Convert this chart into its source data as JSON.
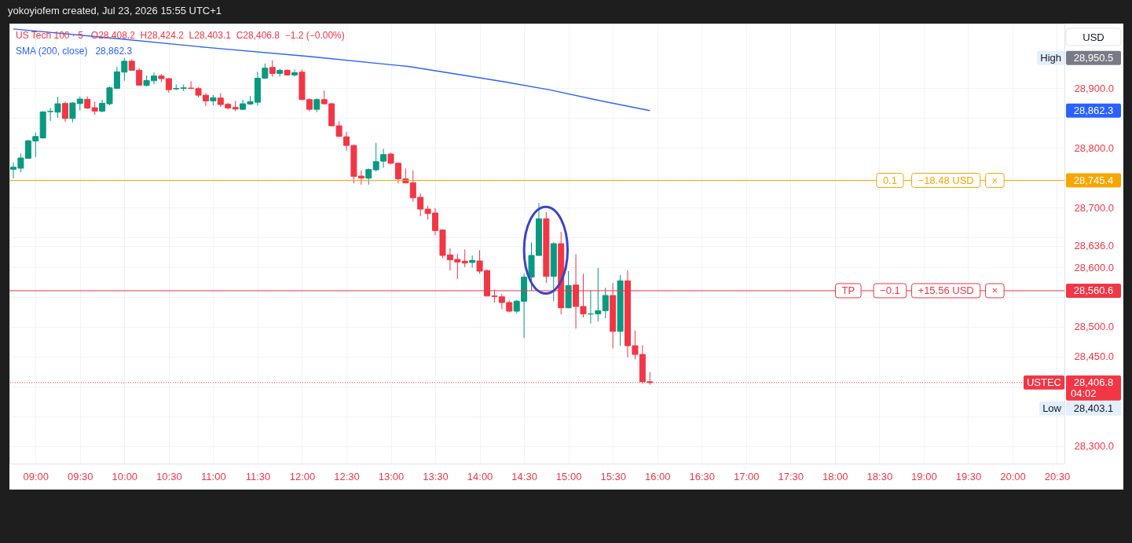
{
  "chart_data": {
    "type": "candlestick",
    "title": "US Tech 100 · 5",
    "ylabel": "USD",
    "x": [
      8.75,
      8.8333,
      8.9167,
      9,
      9.0833,
      9.1667,
      9.25,
      9.3333,
      9.4167,
      9.5,
      9.5833,
      9.6667,
      9.75,
      9.8333,
      9.9167,
      10,
      10.0833,
      10.1667,
      10.25,
      10.3333,
      10.4167,
      10.5,
      10.5833,
      10.6667,
      10.75,
      10.8333,
      10.9167,
      11,
      11.0833,
      11.1667,
      11.25,
      11.3333,
      11.4167,
      11.5,
      11.5833,
      11.6667,
      11.75,
      11.8333,
      11.9167,
      12,
      12.0833,
      12.1667,
      12.25,
      12.3333,
      12.4167,
      12.5,
      12.5833,
      12.6667,
      12.75,
      12.8333,
      12.9167,
      13,
      13.0833,
      13.1667,
      13.25,
      13.3333,
      13.4167,
      13.5,
      13.5833,
      13.6667,
      13.75,
      13.8333,
      13.9167,
      14,
      14.0833,
      14.1667,
      14.25,
      14.3333,
      14.4167,
      14.5,
      14.5833,
      14.6667,
      14.75,
      14.8333,
      14.9167,
      15,
      15.0833,
      15.1667,
      15.25,
      15.3333,
      15.4167,
      15.5,
      15.5833,
      15.6667,
      15.75,
      15.8333,
      15.9167
    ],
    "ohlc": [
      [
        28764.0,
        28775.4,
        28749.0,
        28767.5
      ],
      [
        28765.8,
        28790.8,
        28758.8,
        28782.9
      ],
      [
        28782.4,
        28812.7,
        28782.0,
        28811.8
      ],
      [
        28811.4,
        28825.4,
        28784.2,
        28818.8
      ],
      [
        28816.6,
        28861.4,
        28815.0,
        28860.1
      ],
      [
        28860.5,
        28866.7,
        28844.7,
        28861.0
      ],
      [
        28859.6,
        28885.5,
        28850.0,
        28873.7
      ],
      [
        28874.1,
        28877.2,
        28843.4,
        28849.1
      ],
      [
        28849.1,
        28876.3,
        28842.5,
        28875.0
      ],
      [
        28874.1,
        28886.0,
        28862.3,
        28881.6
      ],
      [
        28881.1,
        28886.0,
        28864.9,
        28866.6
      ],
      [
        28867.1,
        28877.6,
        28855.2,
        28861.4
      ],
      [
        28861.4,
        28880.7,
        28859.2,
        28874.5
      ],
      [
        28873.7,
        28902.6,
        28871.0,
        28900.4
      ],
      [
        28899.5,
        28935.5,
        28898.2,
        28927.2
      ],
      [
        28926.7,
        28950.5,
        28912.3,
        28945.0
      ],
      [
        28945.0,
        28948.0,
        28929.0,
        28929.8
      ],
      [
        28929.8,
        28933.3,
        28904.0,
        28904.8
      ],
      [
        28904.4,
        28921.0,
        28902.6,
        28912.7
      ],
      [
        28912.3,
        28925.9,
        28906.1,
        28920.2
      ],
      [
        28920.2,
        28923.7,
        28910.1,
        28915.8
      ],
      [
        28915.8,
        28917.0,
        28892.1,
        28897.3
      ],
      [
        28898.6,
        28906.1,
        28896.5,
        28899.5
      ],
      [
        28899.5,
        28906.1,
        28894.7,
        28900.4
      ],
      [
        28900.0,
        28911.4,
        28898.2,
        28899.5
      ],
      [
        28899.1,
        28901.7,
        28884.2,
        28888.1
      ],
      [
        28888.1,
        28891.6,
        28869.7,
        28878.5
      ],
      [
        28878.5,
        28888.6,
        28871.0,
        28883.8
      ],
      [
        28883.3,
        28891.6,
        28868.4,
        28872.4
      ],
      [
        28872.8,
        28875.4,
        28864.4,
        28866.6
      ],
      [
        28867.5,
        28878.5,
        28861.4,
        28864.9
      ],
      [
        28864.4,
        28880.7,
        28863.1,
        28873.7
      ],
      [
        28873.2,
        28886.8,
        28871.9,
        28877.2
      ],
      [
        28876.3,
        28927.2,
        28871.0,
        28916.6
      ],
      [
        28916.6,
        28941.2,
        28914.9,
        28933.3
      ],
      [
        28934.6,
        28946.5,
        28919.3,
        28924.5
      ],
      [
        28924.5,
        28932.4,
        28919.3,
        28929.8
      ],
      [
        28929.8,
        28931.1,
        28921.0,
        28921.9
      ],
      [
        28921.9,
        28931.1,
        28919.3,
        28925.9
      ],
      [
        28926.7,
        28931.1,
        28880.0,
        28880.7
      ],
      [
        28880.7,
        28882.9,
        28861.0,
        28864.4
      ],
      [
        28864.4,
        28882.9,
        28859.6,
        28880.7
      ],
      [
        28880.7,
        28896.0,
        28873.0,
        28873.7
      ],
      [
        28873.7,
        28875.4,
        28836.0,
        28836.8
      ],
      [
        28836.8,
        28844.3,
        28818.0,
        28819.3
      ],
      [
        28818.4,
        28826.3,
        28795.2,
        28803.9
      ],
      [
        28803.9,
        28804.8,
        28740.3,
        28752.2
      ],
      [
        28752.6,
        28762.3,
        28738.1,
        28749.1
      ],
      [
        28749.1,
        28765.3,
        28738.1,
        28763.6
      ],
      [
        28763.1,
        28808.3,
        28760.1,
        28776.7
      ],
      [
        28777.6,
        28798.2,
        28766.6,
        28788.6
      ],
      [
        28789.5,
        28791.7,
        28772.0,
        28774.1
      ],
      [
        28774.1,
        28775.4,
        28740.3,
        28748.0
      ],
      [
        28747.8,
        28765.3,
        28740.3,
        28741.2
      ],
      [
        28741.2,
        28762.3,
        28709.6,
        28716.2
      ],
      [
        28717.1,
        28723.7,
        28685.5,
        28697.3
      ],
      [
        28697.3,
        28703.0,
        28679.8,
        28689.9
      ],
      [
        28690.8,
        28698.7,
        28653.5,
        28661.4
      ],
      [
        28662.3,
        28662.3,
        28615.0,
        28619.7
      ],
      [
        28620.6,
        28631.5,
        28594.7,
        28612.3
      ],
      [
        28613.1,
        28622.8,
        28580.2,
        28608.7
      ],
      [
        28610.1,
        28629.8,
        28600.0,
        28607.0
      ],
      [
        28607.9,
        28619.7,
        28599.1,
        28611.4
      ],
      [
        28610.5,
        28628.5,
        28589.0,
        28593.4
      ],
      [
        28594.3,
        28596.5,
        28551.0,
        28551.7
      ],
      [
        28551.7,
        28562.7,
        28540.8,
        28550.9
      ],
      [
        28550.4,
        28554.8,
        28529.8,
        28540.8
      ],
      [
        28540.8,
        28544.3,
        28524.5,
        28526.3
      ],
      [
        28526.3,
        28545.2,
        28523.2,
        28543.0
      ],
      [
        28543.0,
        28589.0,
        28481.6,
        28583.3
      ],
      [
        28583.3,
        28641.7,
        28560.5,
        28619.7
      ],
      [
        28619.7,
        28707.4,
        28619.0,
        28681.1
      ],
      [
        28681.1,
        28692.1,
        28573.7,
        28584.6
      ],
      [
        28584.6,
        28641.7,
        28543.0,
        28639.4
      ],
      [
        28639.4,
        28659.2,
        28521.0,
        28532.0
      ],
      [
        28532.0,
        28593.4,
        28531.0,
        28569.3
      ],
      [
        28570.2,
        28621.9,
        28496.9,
        28534.2
      ],
      [
        28534.2,
        28589.0,
        28515.8,
        28521.9
      ],
      [
        28521.5,
        28561.4,
        28505.7,
        28521.9
      ],
      [
        28521.9,
        28598.7,
        28508.8,
        28527.2
      ],
      [
        28527.2,
        28565.8,
        28514.5,
        28552.6
      ],
      [
        28552.6,
        28573.7,
        28464.0,
        28492.5
      ],
      [
        28492.5,
        28586.8,
        28468.4,
        28577.2
      ],
      [
        28577.2,
        28594.7,
        28448.7,
        28468.4
      ],
      [
        28468.4,
        28493.8,
        28445.6,
        28453.9
      ],
      [
        28453.9,
        28469.3,
        28405.0,
        28408.2
      ],
      [
        28408.2,
        28424.2,
        28403.1,
        28406.8
      ]
    ],
    "colors": [
      "#089981",
      "#089981",
      "#089981",
      "#089981",
      "#089981",
      "#089981",
      "#089981",
      "#f23645",
      "#089981",
      "#089981",
      "#f23645",
      "#f23645",
      "#089981",
      "#089981",
      "#089981",
      "#089981",
      "#f23645",
      "#f23645",
      "#089981",
      "#089981",
      "#f23645",
      "#f23645",
      "#089981",
      "#089981",
      "#f23645",
      "#f23645",
      "#f23645",
      "#089981",
      "#f23645",
      "#f23645",
      "#f23645",
      "#089981",
      "#089981",
      "#089981",
      "#089981",
      "#f23645",
      "#089981",
      "#f23645",
      "#089981",
      "#f23645",
      "#f23645",
      "#089981",
      "#f23645",
      "#f23645",
      "#f23645",
      "#f23645",
      "#f23645",
      "#f23645",
      "#089981",
      "#089981",
      "#089981",
      "#f23645",
      "#f23645",
      "#f23645",
      "#f23645",
      "#f23645",
      "#f23645",
      "#f23645",
      "#f23645",
      "#f23645",
      "#f23645",
      "#f23645",
      "#089981",
      "#f23645",
      "#f23645",
      "#f23645",
      "#f23645",
      "#f23645",
      "#089981",
      "#089981",
      "#089981",
      "#089981",
      "#f23645",
      "#089981",
      "#f23645",
      "#089981",
      "#f23645",
      "#f23645",
      "#089981",
      "#089981",
      "#089981",
      "#f23645",
      "#089981",
      "#f23645",
      "#f23645",
      "#f23645",
      "#f23645"
    ],
    "series": [
      {
        "name": "SMA (200, close)",
        "type": "line",
        "color": "#2962ff",
        "x": [
          8.75,
          9.84,
          10.93,
          12.07,
          13.21,
          14.26,
          14.79,
          15.32,
          15.9167
        ],
        "values": [
          28999,
          28984,
          28968,
          28953,
          28936,
          28911,
          28897,
          28880,
          28862.3
        ]
      }
    ],
    "xlim": [
      8.75,
      20.54
    ],
    "xticks": [
      {
        "value": 9,
        "label": "09:00"
      },
      {
        "value": 9.5,
        "label": "09:30"
      },
      {
        "value": 10,
        "label": "10:00"
      },
      {
        "value": 10.5,
        "label": "10:30"
      },
      {
        "value": 11,
        "label": "11:00"
      },
      {
        "value": 11.5,
        "label": "11:30"
      },
      {
        "value": 12,
        "label": "12:00"
      },
      {
        "value": 12.5,
        "label": "12:30"
      },
      {
        "value": 13,
        "label": "13:00"
      },
      {
        "value": 13.5,
        "label": "13:30"
      },
      {
        "value": 14,
        "label": "14:00"
      },
      {
        "value": 14.5,
        "label": "14:30"
      },
      {
        "value": 15,
        "label": "15:00"
      },
      {
        "value": 15.5,
        "label": "15:30"
      },
      {
        "value": 16,
        "label": "16:00"
      },
      {
        "value": 16.5,
        "label": "16:30"
      },
      {
        "value": 17,
        "label": "17:00"
      },
      {
        "value": 17.5,
        "label": "17:30"
      },
      {
        "value": 18,
        "label": "18:00"
      },
      {
        "value": 18.5,
        "label": "18:30"
      },
      {
        "value": 19,
        "label": "19:00"
      },
      {
        "value": 19.5,
        "label": "19:30"
      },
      {
        "value": 20,
        "label": "20:00"
      },
      {
        "value": 20.5,
        "label": "20:30"
      }
    ],
    "ylim": [
      28271,
      29008
    ],
    "yticks": [
      {
        "value": 28300,
        "label": "28,300.0"
      },
      {
        "value": 28350,
        "label": null
      },
      {
        "value": 28400,
        "label": null
      },
      {
        "value": 28450,
        "label": "28,450.0"
      },
      {
        "value": 28500,
        "label": "28,500.0"
      },
      {
        "value": 28550,
        "label": null
      },
      {
        "value": 28600,
        "label": "28,600.0"
      },
      {
        "value": 28636.0,
        "label": "28,636.0"
      },
      {
        "value": 28650,
        "label": null
      },
      {
        "value": 28700,
        "label": "28,700.0"
      },
      {
        "value": 28750,
        "label": null
      },
      {
        "value": 28800,
        "label": "28,800.0"
      },
      {
        "value": 28850,
        "label": null
      },
      {
        "value": 28900,
        "label": "28,900.0"
      }
    ],
    "grid": true,
    "legend": "top left",
    "ref_lines": [
      {
        "axis": "y",
        "value": 28745.4,
        "label": "28,745.4",
        "color": "#f7a600",
        "line_style": "solid"
      },
      {
        "axis": "y",
        "value": 28560.6,
        "label": "28,560.6",
        "color": "#f23645",
        "line_style": "solid"
      },
      {
        "axis": "y",
        "value": 28406.8,
        "label": "28,406.8",
        "color": "#f23645",
        "line_style": "dotted"
      }
    ],
    "annotations": [
      "yokoyiofem created, Jul 23, 2026 15:55 UTC+1",
      "O28,408.2  H28,424.2  L28,403.1  C28,406.8  −1.2 (−0.00%)",
      "28,862.3",
      {
        "text": "0.1",
        "x": 18.62,
        "y": 28745.4
      },
      {
        "text": "−18.48 USD",
        "x": 19.25,
        "y": 28745.4
      },
      {
        "text": "×",
        "x": 19.8,
        "y": 28745.4
      },
      {
        "text": "TP",
        "x": 18.15,
        "y": 28560.6
      },
      {
        "text": "−0.1",
        "x": 18.62,
        "y": 28560.6
      },
      {
        "text": "+15.56 USD",
        "x": 19.25,
        "y": 28560.6
      },
      {
        "text": "×",
        "x": 19.8,
        "y": 28560.6
      },
      "28,950.5",
      "High",
      "28,862.3",
      "USTEC",
      "04:02",
      "28,403.1",
      "Low"
    ]
  }
}
